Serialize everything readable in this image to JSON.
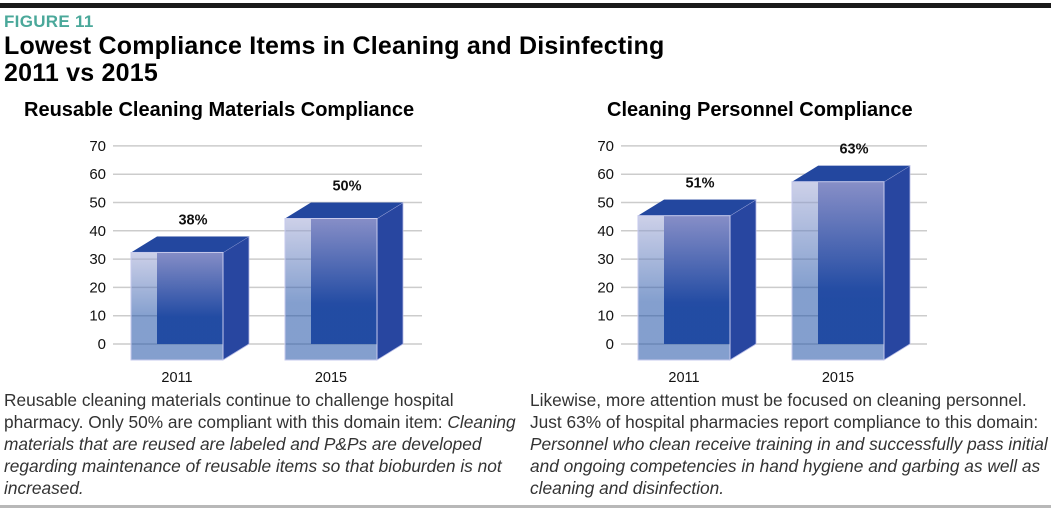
{
  "figure_label": "FIGURE 11",
  "title_line1": "Lowest Compliance Items in Cleaning and Disinfecting",
  "title_line2": "2011 vs 2015",
  "colors": {
    "figure_label": "#4aa89a",
    "bar_front": "#1e50a6",
    "bar_side": "#2846a0",
    "bar_top": "#23479f",
    "gridline": "#cccccc"
  },
  "chart_data": [
    {
      "type": "bar",
      "title": "Reusable Cleaning Materials Compliance",
      "categories": [
        "2011",
        "2015"
      ],
      "values": [
        38,
        50
      ],
      "data_labels": [
        "38%",
        "50%"
      ],
      "xlabel": "",
      "ylabel": "",
      "ylim": [
        0,
        70
      ],
      "yticks": [
        0,
        10,
        20,
        30,
        40,
        50,
        60,
        70
      ],
      "grid": true,
      "style": "3d"
    },
    {
      "type": "bar",
      "title": "Cleaning Personnel Compliance",
      "categories": [
        "2011",
        "2015"
      ],
      "values": [
        51,
        63
      ],
      "data_labels": [
        "51%",
        "63%"
      ],
      "xlabel": "",
      "ylabel": "",
      "ylim": [
        0,
        70
      ],
      "yticks": [
        0,
        10,
        20,
        30,
        40,
        50,
        60,
        70
      ],
      "grid": true,
      "style": "3d"
    }
  ],
  "captions": [
    {
      "plain": "Reusable cleaning materials continue to challenge hospital pharmacy. Only 50% are compliant with this domain item: ",
      "italic": "Cleaning materials that are reused are labeled and P&Ps are developed regarding maintenance of reusable items so that bioburden is not increased."
    },
    {
      "plain": "Likewise, more attention must be focused on cleaning personnel. Just 63% of hospital pharmacies report compliance to this domain: ",
      "italic": "Personnel who clean receive training in and successfully pass initial and ongoing competencies in hand hygiene and garbing as well as cleaning and disinfection."
    }
  ]
}
